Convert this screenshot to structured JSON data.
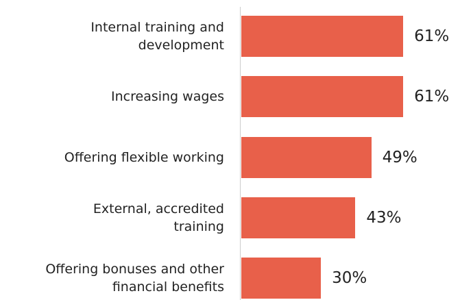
{
  "chart_data": {
    "type": "bar",
    "orientation": "horizontal",
    "categories": [
      "Internal training and\ndevelopment",
      "Increasing wages",
      "Offering flexible working",
      "External, accredited\ntraining",
      "Offering bonuses and other\nfinancial benefits"
    ],
    "values": [
      61,
      61,
      49,
      43,
      30
    ],
    "value_labels": [
      "61%",
      "61%",
      "49%",
      "43%",
      "30%"
    ],
    "color": "#e8604a"
  }
}
